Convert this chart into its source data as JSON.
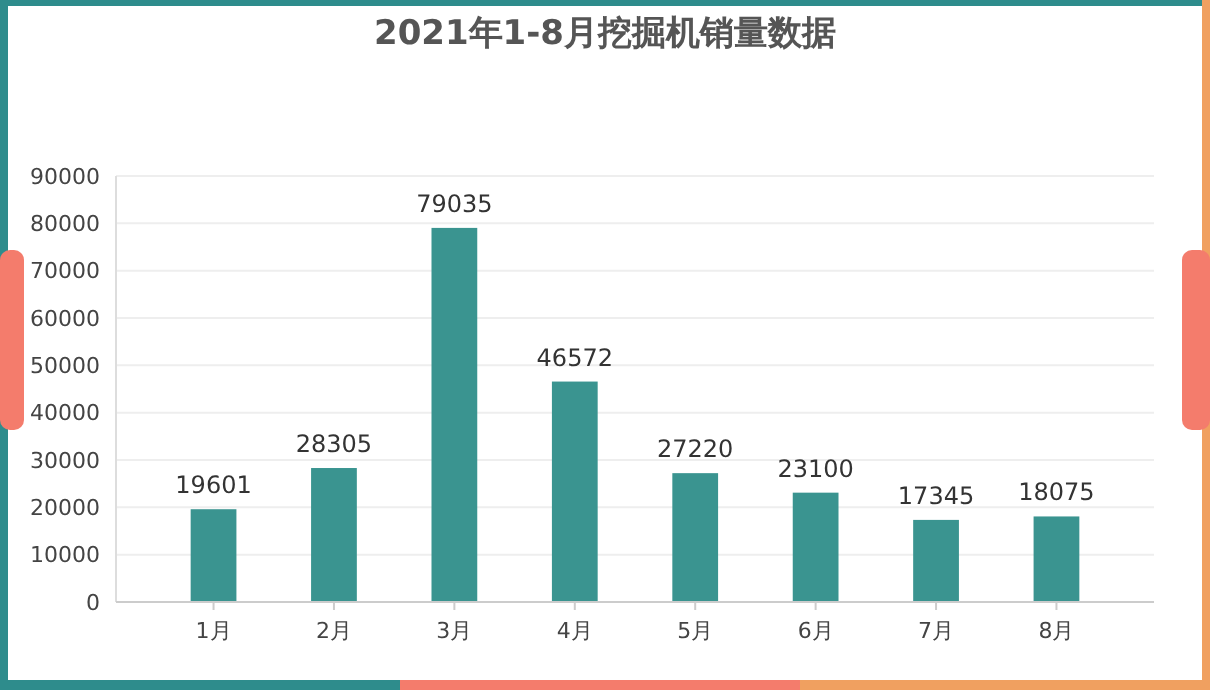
{
  "chart_data": {
    "type": "bar",
    "title": "2021年1-8月挖掘机销量数据",
    "categories": [
      "1月",
      "2月",
      "3月",
      "4月",
      "5月",
      "6月",
      "7月",
      "8月"
    ],
    "values": [
      19601,
      28305,
      79035,
      46572,
      27220,
      23100,
      17345,
      18075
    ],
    "color": "#3a9490",
    "data_labels": true,
    "ylim": [
      0,
      90000
    ],
    "yticks": [
      0,
      10000,
      20000,
      30000,
      40000,
      50000,
      60000,
      70000,
      80000,
      90000
    ],
    "grid": "y"
  }
}
